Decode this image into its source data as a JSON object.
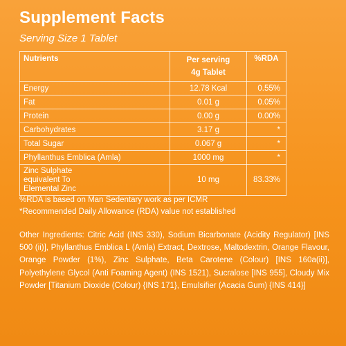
{
  "header": {
    "title": "Supplement Facts",
    "serving_size": "Serving Size 1 Tablet"
  },
  "table": {
    "headers": {
      "nutrients": "Nutrients",
      "per_serving_line1": "Per serving",
      "per_serving_line2": "4g Tablet",
      "rda": "%RDA"
    },
    "rows": [
      {
        "name": "Energy",
        "amount": "12.78 Kcal",
        "rda": "0.55%"
      },
      {
        "name": "Fat",
        "amount": "0.01 g",
        "rda": "0.05%"
      },
      {
        "name": "Protein",
        "amount": "0.00 g",
        "rda": "0.00%"
      },
      {
        "name": "Carbohydrates",
        "amount": "3.17 g",
        "rda": "*"
      },
      {
        "name": "Total Sugar",
        "amount": "0.067 g",
        "rda": "*"
      },
      {
        "name": "Phyllanthus Emblica (Amla)",
        "amount": "1000 mg",
        "rda": "*"
      }
    ],
    "zinc_row": {
      "name_line1": "Zinc Sulphate",
      "name_line2": "equivalent To",
      "name_line3": "Elemental Zinc",
      "amount": "10 mg",
      "rda": "83.33%"
    }
  },
  "notes": {
    "note1": "%RDA is based on Man Sedentary work as per ICMR",
    "note2": "*Recommended Daily Allowance (RDA) value not established"
  },
  "ingredients": "Other Ingredients: Citric Acid (INS 330), Sodium Bicarbonate (Acidity Regulator) [INS 500 (ii)], Phyllanthus Emblica L (Amla) Extract, Dextrose, Maltodextrin, Orange Flavour, Orange Powder (1%), Zinc Sulphate, Beta Carotene (Colour) [INS 160a(ii)], Polyethylene Glycol (Anti Foaming Agent) (INS 1521), Sucralose [INS 955], Cloudy Mix Powder [Titanium Dioxide (Colour) {INS 171}, Emulsifier (Acacia Gum) {INS 414}]",
  "colors": {
    "background": "#f7941d",
    "text": "#ffffff"
  }
}
